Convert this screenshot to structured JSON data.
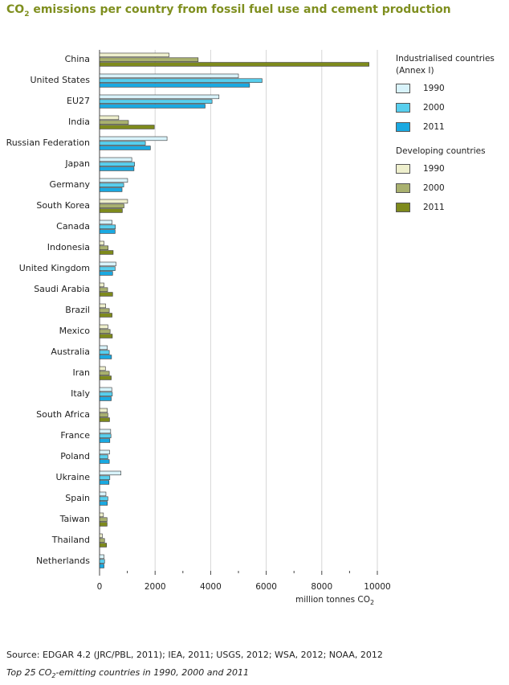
{
  "title": {
    "pre": "CO",
    "sub": "2",
    "post": " emissions per country from fossil fuel use and cement production"
  },
  "legend": {
    "industrialised_heading_1": "Industrialised countries",
    "industrialised_heading_2": "(Annex I)",
    "industrialised_items": [
      "1990",
      "2000",
      "2011"
    ],
    "developing_heading": "Developing countries",
    "developing_items": [
      "1990",
      "2000",
      "2011"
    ]
  },
  "colors": {
    "ind_1990": "#d8f3fb",
    "ind_2000": "#58cfee",
    "ind_2011": "#1aa9e1",
    "dev_1990": "#eeefcd",
    "dev_2000": "#a9b16f",
    "dev_2011": "#7e8a1c",
    "gridline": "#d6d6d6",
    "title": "#7f8f1f"
  },
  "xunit": {
    "pre": "million tonnes CO",
    "sub": "2"
  },
  "source": "Source: EDGAR 4.2 (JRC/PBL, 2011);  IEA, 2011; USGS, 2012; WSA, 2012; NOAA, 2012",
  "caption": {
    "pre": "Top 25 CO",
    "sub": "2",
    "post": "-emitting countries in 1990, 2000 and 2011"
  },
  "chart_data": {
    "type": "bar",
    "orientation": "horizontal",
    "xlabel": "million tonnes CO2",
    "xlim": [
      0,
      10000
    ],
    "xticks": [
      0,
      2000,
      4000,
      6000,
      8000,
      10000
    ],
    "grid": true,
    "legend_position": "right",
    "categories": [
      "China",
      "United States",
      "EU27",
      "India",
      "Russian Federation",
      "Japan",
      "Germany",
      "South Korea",
      "Canada",
      "Indonesia",
      "United Kingdom",
      "Saudi Arabia",
      "Brazil",
      "Mexico",
      "Australia",
      "Iran",
      "Italy",
      "South Africa",
      "France",
      "Poland",
      "Ukraine",
      "Spain",
      "Taiwan",
      "Thailand",
      "Netherlands"
    ],
    "group": [
      "developing",
      "industrialised",
      "industrialised",
      "developing",
      "industrialised",
      "industrialised",
      "industrialised",
      "developing",
      "industrialised",
      "developing",
      "industrialised",
      "developing",
      "developing",
      "developing",
      "industrialised",
      "developing",
      "industrialised",
      "developing",
      "industrialised",
      "industrialised",
      "industrialised",
      "industrialised",
      "developing",
      "developing",
      "industrialised"
    ],
    "series": [
      {
        "name": "1990",
        "values": [
          2500,
          5000,
          4300,
          690,
          2430,
          1160,
          1010,
          1010,
          450,
          160,
          590,
          160,
          220,
          300,
          280,
          210,
          440,
          280,
          400,
          360,
          770,
          230,
          140,
          100,
          160
        ]
      },
      {
        "name": "2000",
        "values": [
          3550,
          5850,
          4050,
          1040,
          1650,
          1260,
          870,
          880,
          570,
          310,
          560,
          290,
          350,
          380,
          350,
          350,
          460,
          300,
          410,
          300,
          370,
          300,
          270,
          180,
          180
        ]
      },
      {
        "name": "2011",
        "values": [
          9700,
          5400,
          3800,
          1970,
          1830,
          1240,
          810,
          820,
          560,
          490,
          470,
          470,
          450,
          460,
          430,
          420,
          420,
          360,
          370,
          350,
          340,
          280,
          270,
          250,
          160
        ]
      }
    ]
  }
}
